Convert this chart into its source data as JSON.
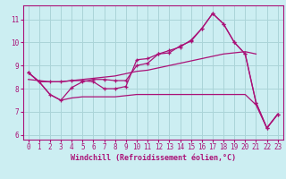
{
  "background_color": "#cceef2",
  "grid_color": "#aad4d8",
  "line_color": "#aa1177",
  "xlabel": "Windchill (Refroidissement éolien,°C)",
  "xlim": [
    -0.5,
    23.5
  ],
  "ylim": [
    5.8,
    11.6
  ],
  "yticks": [
    6,
    7,
    8,
    9,
    10,
    11
  ],
  "xticks": [
    0,
    1,
    2,
    3,
    4,
    5,
    6,
    7,
    8,
    9,
    10,
    11,
    12,
    13,
    14,
    15,
    16,
    17,
    18,
    19,
    20,
    21,
    22,
    23
  ],
  "line1_x": [
    0,
    1,
    2,
    3,
    4,
    5,
    6,
    7,
    8,
    9,
    10,
    11,
    12,
    13,
    14,
    15,
    16,
    17,
    18,
    19,
    20,
    21,
    22,
    23
  ],
  "line1_y": [
    8.7,
    8.3,
    8.3,
    8.3,
    8.35,
    8.35,
    8.3,
    8.0,
    8.0,
    8.1,
    9.25,
    9.3,
    9.5,
    9.55,
    9.85,
    10.05,
    10.6,
    11.25,
    10.8,
    10.0,
    9.5,
    7.4,
    6.3,
    6.9
  ],
  "line2_x": [
    0,
    1,
    2,
    3,
    4,
    5,
    6,
    7,
    8,
    9,
    10,
    11,
    12,
    13,
    14,
    15,
    16,
    17,
    18,
    19,
    20,
    21,
    22,
    23
  ],
  "line2_y": [
    8.7,
    8.3,
    7.75,
    7.5,
    8.05,
    8.3,
    8.4,
    8.4,
    8.35,
    8.35,
    9.0,
    9.1,
    9.5,
    9.65,
    9.8,
    10.1,
    10.6,
    11.25,
    10.8,
    10.0,
    9.5,
    7.4,
    6.3,
    6.9
  ],
  "line3_x": [
    0,
    1,
    2,
    3,
    4,
    5,
    6,
    7,
    8,
    9,
    10,
    11,
    12,
    13,
    14,
    15,
    16,
    17,
    18,
    19,
    20,
    21
  ],
  "line3_y": [
    8.4,
    8.35,
    8.3,
    8.3,
    8.35,
    8.4,
    8.45,
    8.5,
    8.55,
    8.65,
    8.75,
    8.8,
    8.9,
    9.0,
    9.1,
    9.2,
    9.3,
    9.4,
    9.5,
    9.55,
    9.6,
    9.5
  ],
  "line4_x": [
    0,
    1,
    2,
    3,
    4,
    5,
    6,
    7,
    8,
    9,
    10,
    11,
    12,
    13,
    14,
    15,
    16,
    17,
    18,
    19,
    20,
    21,
    22,
    23
  ],
  "line4_y": [
    8.7,
    8.3,
    7.75,
    7.5,
    7.6,
    7.65,
    7.65,
    7.65,
    7.65,
    7.7,
    7.75,
    7.75,
    7.75,
    7.75,
    7.75,
    7.75,
    7.75,
    7.75,
    7.75,
    7.75,
    7.75,
    7.3,
    6.3,
    6.9
  ]
}
